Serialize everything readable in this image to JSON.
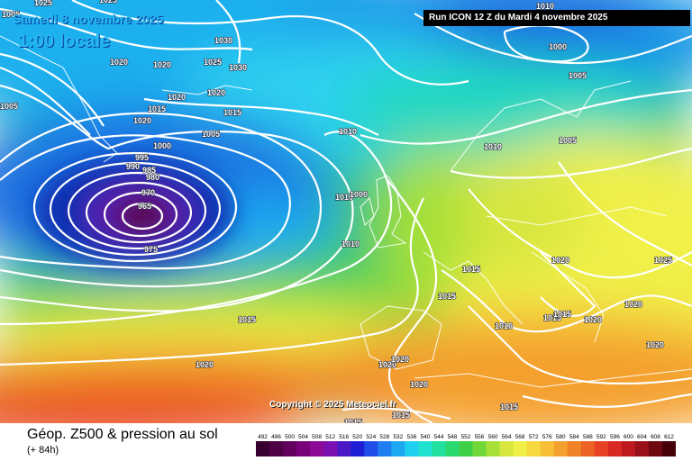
{
  "map": {
    "valid_date": "Samedi 8 novembre 2025",
    "local_time": "1:00 locale",
    "run_info": "Run ICON 12 Z du Mardi 4 novembre 2025",
    "copyright": "Copyright © 2025 Meteociel.fr",
    "isobar_labels": [
      "1025",
      "1020",
      "1020",
      "1030",
      "1025",
      "1020",
      "1020",
      "1020",
      "1015",
      "1005",
      "995",
      "990",
      "985",
      "980",
      "970",
      "965",
      "975",
      "1000",
      "1005",
      "1015",
      "1010",
      "1010",
      "1000",
      "1010",
      "1015",
      "1015",
      "1015",
      "1020",
      "1020",
      "1020",
      "1020",
      "1010",
      "1015",
      "1015",
      "1015",
      "1020",
      "1020",
      "1020",
      "1025",
      "1020",
      "1005",
      "1005",
      "1000",
      "1010",
      "1030",
      "1015",
      "1015",
      "1010",
      "1005",
      "1025"
    ],
    "colors": {
      "low_center": "#5a1037",
      "deep_blue": "#0d2db0",
      "blue": "#1f6fe0",
      "cyan": "#2fd0f0",
      "green": "#35c768",
      "yellow": "#e6e646",
      "orange": "#f3a62a",
      "red": "#e6452d"
    }
  },
  "footer": {
    "title": "Géop. Z500 & pression au sol",
    "lead_time": "(+ 84h)"
  },
  "legend": {
    "values": [
      "492",
      "496",
      "500",
      "504",
      "508",
      "512",
      "516",
      "520",
      "524",
      "528",
      "532",
      "536",
      "540",
      "544",
      "548",
      "552",
      "556",
      "560",
      "564",
      "568",
      "572",
      "576",
      "580",
      "584",
      "588",
      "592",
      "596",
      "600",
      "604",
      "608",
      "612"
    ],
    "colors": [
      "#380030",
      "#4d0045",
      "#62005e",
      "#78007a",
      "#8c0a96",
      "#7a10b0",
      "#4a18c4",
      "#1f1fd8",
      "#1f4fe8",
      "#1f7ff0",
      "#1fa8f2",
      "#1fcff0",
      "#20e0d0",
      "#22e0a0",
      "#2ad870",
      "#40d048",
      "#70d838",
      "#a6e038",
      "#d8e640",
      "#f0f048",
      "#f6d840",
      "#f7be38",
      "#f4a02e",
      "#f08228",
      "#ec6224",
      "#e84224",
      "#d82a22",
      "#bc1a1e",
      "#98101a",
      "#700812",
      "#480008"
    ]
  }
}
